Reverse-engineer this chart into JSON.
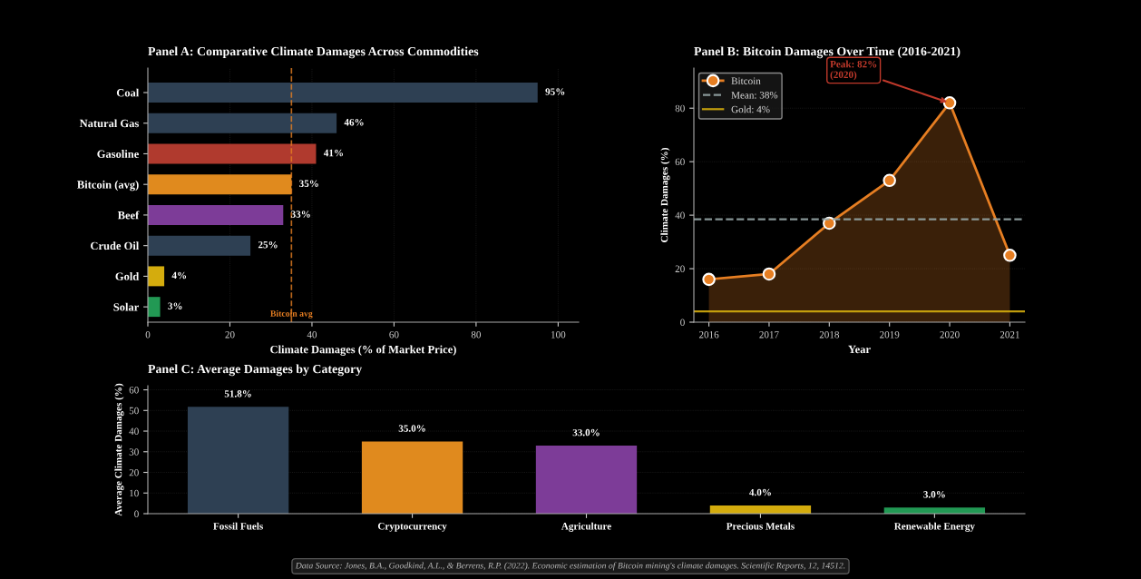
{
  "chart_data": [
    {
      "type": "bar",
      "orientation": "horizontal",
      "title": "Panel A: Comparative Climate Damages Across Commodities",
      "xlabel": "Climate Damages (% of Market Price)",
      "categories": [
        "Coal",
        "Natural Gas",
        "Gasoline",
        "Bitcoin (avg)",
        "Beef",
        "Crude Oil",
        "Gold",
        "Solar"
      ],
      "values": [
        95,
        46,
        41,
        35,
        33,
        25,
        4,
        3
      ],
      "colors": [
        "#2e4053",
        "#2e4053",
        "#b03a2e",
        "#e08a1e",
        "#7d3c98",
        "#2e4053",
        "#d4ac0d",
        "#229954"
      ],
      "value_labels": [
        "95%",
        "46%",
        "41%",
        "35%",
        "33%",
        "25%",
        "4%",
        "3%"
      ],
      "xlim": [
        0,
        105
      ],
      "xticks": [
        0,
        20,
        40,
        60,
        80,
        100
      ],
      "grid": "x",
      "legend": false,
      "ref_lines": [
        {
          "axis": "x",
          "value": 35,
          "label": "Bitcoin avg",
          "color": "#e67e22",
          "line_style": "dashed"
        }
      ]
    },
    {
      "type": "area",
      "title": "Panel B: Bitcoin Damages Over Time (2016-2021)",
      "xlabel": "Year",
      "ylabel": "Climate Damages (%)",
      "x": [
        2016,
        2017,
        2018,
        2019,
        2020,
        2021
      ],
      "series": [
        {
          "name": "Bitcoin",
          "color": "#e67e22",
          "values": [
            16,
            18,
            37,
            53,
            82,
            25
          ]
        }
      ],
      "marker": "circle",
      "xlim": [
        2015.75,
        2021.25
      ],
      "xticks": [
        2016,
        2017,
        2018,
        2019,
        2020,
        2021
      ],
      "ylim": [
        0,
        95
      ],
      "yticks": [
        0,
        20,
        40,
        60,
        80
      ],
      "grid": "y",
      "legend": "top left",
      "ref_lines": [
        {
          "axis": "y",
          "value": 38.5,
          "label": "Mean: 38%",
          "color": "#95a5a6",
          "line_style": "dashed"
        },
        {
          "axis": "y",
          "value": 4,
          "label": "Gold: 4%",
          "color": "#d4ac0d",
          "line_style": "solid"
        }
      ],
      "annotations": [
        {
          "text": "Peak: 82%\n(2020)",
          "x": 2020,
          "y": 82
        }
      ]
    },
    {
      "type": "bar",
      "title": "Panel C: Average Damages by Category",
      "ylabel": "Average Climate Damages (%)",
      "categories": [
        "Fossil Fuels",
        "Cryptocurrency",
        "Agriculture",
        "Precious Metals",
        "Renewable Energy"
      ],
      "values": [
        51.8,
        35.0,
        33.0,
        4.0,
        3.0
      ],
      "colors": [
        "#2e4053",
        "#e08a1e",
        "#7d3c98",
        "#d4ac0d",
        "#229954"
      ],
      "value_labels": [
        "51.8%",
        "35.0%",
        "33.0%",
        "4.0%",
        "3.0%"
      ],
      "ylim": [
        0,
        62
      ],
      "yticks": [
        0,
        10,
        20,
        30,
        40,
        50,
        60
      ],
      "grid": "y",
      "legend": false,
      "annotations": [
        "Data Source: Jones, B.A., Goodkind, A.L., & Berrens, R.P. (2022). Economic estimation of Bitcoin mining's climate damages. Scientific Reports, 12, 14512."
      ]
    }
  ]
}
